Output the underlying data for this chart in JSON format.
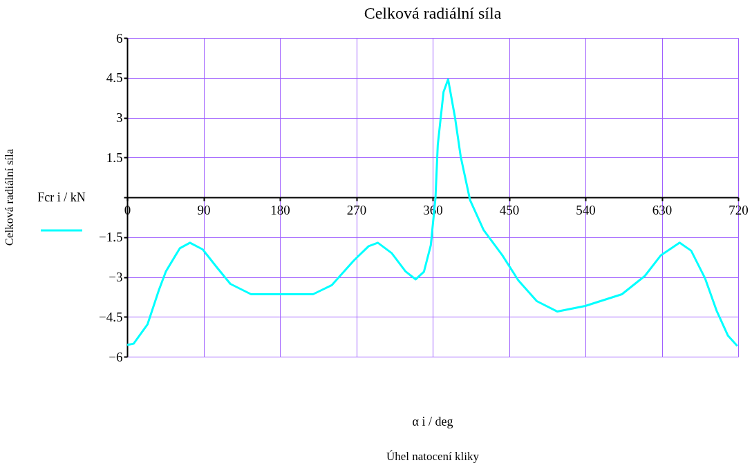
{
  "chart_data": {
    "type": "line",
    "title": "Celková radiální síla",
    "annotations": [
      "Celková radiální síla",
      "α i / deg",
      "Úhel natocení kliky"
    ],
    "x": [
      0,
      7.6,
      24,
      37.5,
      45.6,
      62,
      74,
      89,
      105,
      121.6,
      146,
      181,
      219,
      241,
      268,
      284.5,
      295.4,
      311.7,
      328,
      340,
      349.7,
      357.8,
      363.3,
      366,
      372.8,
      378.2,
      386.3,
      393,
      404,
      420,
      442,
      461,
      482.7,
      507,
      539.7,
      583,
      610,
      629,
      651,
      664.6,
      681,
      694.5,
      708,
      719
    ],
    "series": [
      {
        "name": "Fcr i / kN",
        "color": "#00ffff",
        "values": [
          -5.56,
          -5.51,
          -4.78,
          -3.48,
          -2.79,
          -1.92,
          -1.71,
          -1.96,
          -2.61,
          -3.26,
          -3.65,
          -3.65,
          -3.65,
          -3.31,
          -2.35,
          -1.84,
          -1.71,
          -2.1,
          -2.79,
          -3.09,
          -2.8,
          -1.8,
          -0.02,
          1.97,
          3.97,
          4.44,
          3.01,
          1.54,
          -0.1,
          -1.23,
          -2.18,
          -3.13,
          -3.91,
          -4.3,
          -4.09,
          -3.65,
          -2.96,
          -2.18,
          -1.71,
          -2.01,
          -3.05,
          -4.26,
          -5.21,
          -5.6
        ]
      }
    ],
    "xlim": [
      0,
      720
    ],
    "xticks": [
      0,
      90,
      180,
      270,
      360,
      450,
      540,
      630,
      720
    ],
    "ylim": [
      -6,
      6
    ],
    "yticks": [
      -6,
      -4.5,
      -3,
      -1.5,
      {
        "value": 0,
        "label": null
      },
      1.5,
      3,
      4.5,
      6
    ],
    "grid": true,
    "legend": "left",
    "marker": "none",
    "line_style": "solid"
  }
}
